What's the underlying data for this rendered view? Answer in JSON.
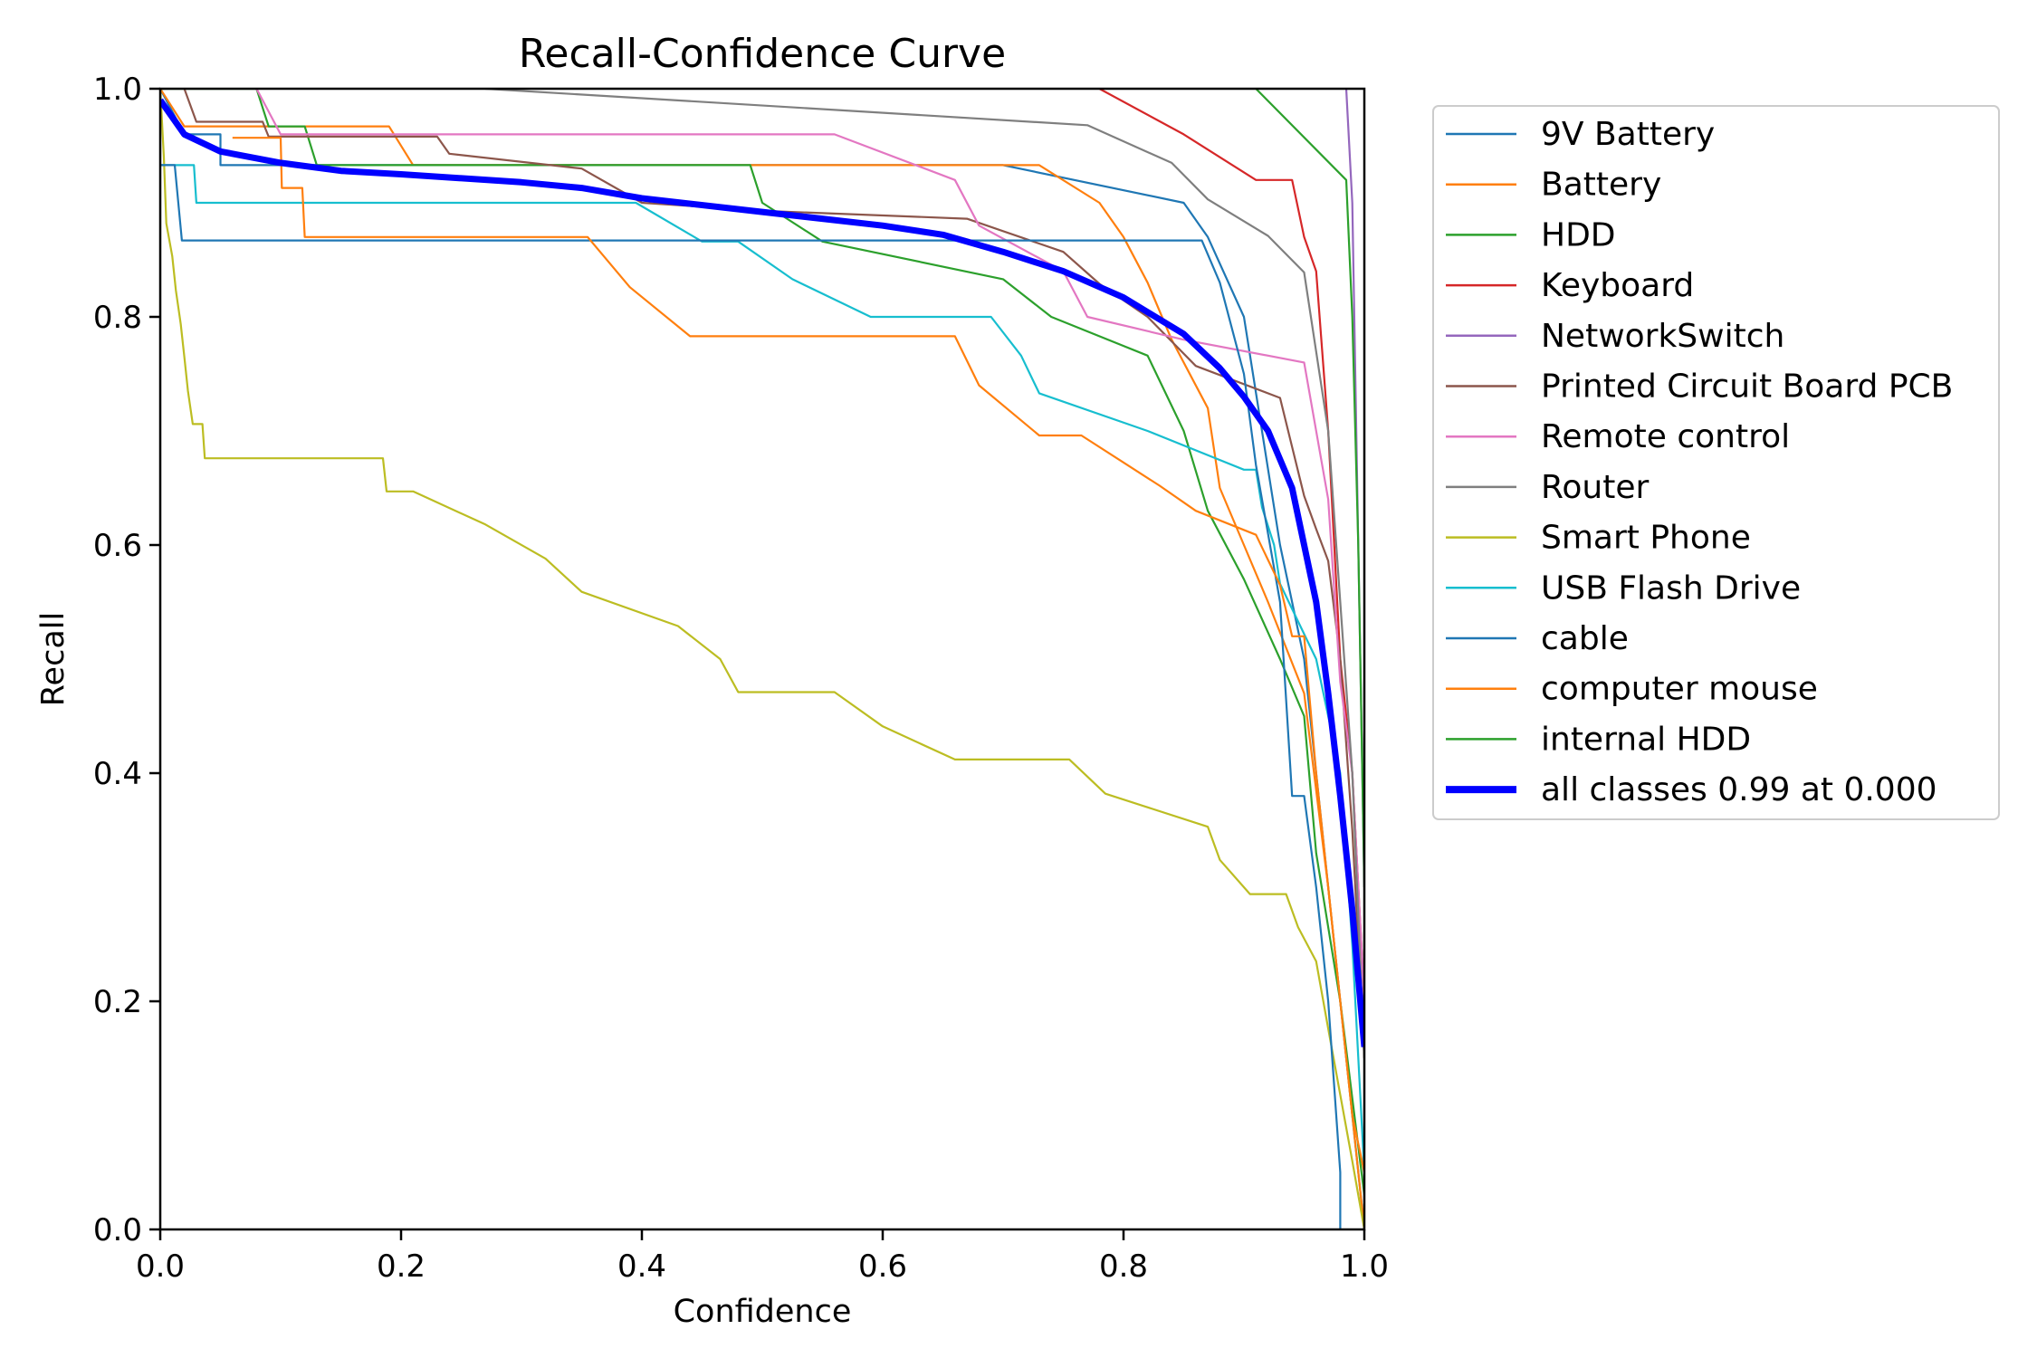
{
  "chart_data": {
    "type": "line",
    "title": "Recall-Confidence Curve",
    "xlabel": "Confidence",
    "ylabel": "Recall",
    "xlim": [
      0,
      1
    ],
    "ylim": [
      0,
      1
    ],
    "xticks": [
      "0.0",
      "0.2",
      "0.4",
      "0.6",
      "0.8",
      "1.0"
    ],
    "yticks": [
      "0.0",
      "0.2",
      "0.4",
      "0.6",
      "0.8",
      "1.0"
    ],
    "grid": false,
    "legend_position": "outside-right",
    "series": [
      {
        "name": "9V Battery",
        "color": "#1f77b4",
        "width": 1,
        "points": [
          [
            0,
            1.0
          ],
          [
            0.02,
            0.96
          ],
          [
            0.05,
            0.96
          ],
          [
            0.05,
            0.933
          ],
          [
            0.7,
            0.933
          ],
          [
            0.85,
            0.9
          ],
          [
            0.87,
            0.87
          ],
          [
            0.9,
            0.8
          ],
          [
            0.93,
            0.6
          ],
          [
            0.95,
            0.5
          ],
          [
            0.97,
            0.3
          ],
          [
            0.99,
            0.1
          ],
          [
            1.0,
            0.0
          ]
        ]
      },
      {
        "name": "Battery",
        "color": "#ff7f0e",
        "width": 1,
        "points": [
          [
            0,
            1.0
          ],
          [
            0.02,
            0.967
          ],
          [
            0.19,
            0.967
          ],
          [
            0.21,
            0.933
          ],
          [
            0.73,
            0.933
          ],
          [
            0.78,
            0.9
          ],
          [
            0.8,
            0.87
          ],
          [
            0.82,
            0.83
          ],
          [
            0.84,
            0.78
          ],
          [
            0.87,
            0.72
          ],
          [
            0.88,
            0.65
          ],
          [
            0.9,
            0.6
          ],
          [
            0.92,
            0.55
          ],
          [
            0.95,
            0.47
          ],
          [
            0.97,
            0.3
          ],
          [
            0.99,
            0.1
          ],
          [
            1.0,
            0.0
          ]
        ]
      },
      {
        "name": "HDD",
        "color": "#2ca02c",
        "width": 1,
        "points": [
          [
            0,
            1.0
          ],
          [
            0.08,
            1.0
          ],
          [
            0.09,
            0.967
          ],
          [
            0.12,
            0.967
          ],
          [
            0.13,
            0.933
          ],
          [
            0.49,
            0.933
          ],
          [
            0.5,
            0.9
          ],
          [
            0.55,
            0.866
          ],
          [
            0.7,
            0.833
          ],
          [
            0.74,
            0.8
          ],
          [
            0.82,
            0.766
          ],
          [
            0.85,
            0.7
          ],
          [
            0.87,
            0.63
          ],
          [
            0.9,
            0.57
          ],
          [
            0.93,
            0.5
          ],
          [
            0.95,
            0.45
          ],
          [
            0.96,
            0.33
          ],
          [
            0.98,
            0.2
          ],
          [
            1.0,
            0.03
          ]
        ]
      },
      {
        "name": "Keyboard",
        "color": "#d62728",
        "width": 1,
        "points": [
          [
            0.78,
            1.0
          ],
          [
            0.85,
            0.96
          ],
          [
            0.91,
            0.92
          ],
          [
            0.94,
            0.92
          ],
          [
            0.95,
            0.87
          ],
          [
            0.96,
            0.84
          ],
          [
            0.97,
            0.7
          ],
          [
            0.98,
            0.5
          ],
          [
            0.99,
            0.4
          ],
          [
            1.0,
            0.2
          ]
        ]
      },
      {
        "name": "NetworkSwitch",
        "color": "#9467bd",
        "width": 1,
        "points": [
          [
            0.985,
            1.0
          ],
          [
            0.99,
            0.9
          ],
          [
            0.995,
            0.6
          ],
          [
            1.0,
            0.3
          ]
        ]
      },
      {
        "name": "Printed Circuit Board PCB",
        "color": "#8c564b",
        "width": 1,
        "points": [
          [
            0.02,
            1.0
          ],
          [
            0.03,
            0.971
          ],
          [
            0.085,
            0.971
          ],
          [
            0.09,
            0.958
          ],
          [
            0.23,
            0.958
          ],
          [
            0.24,
            0.943
          ],
          [
            0.35,
            0.93
          ],
          [
            0.4,
            0.9
          ],
          [
            0.5,
            0.893
          ],
          [
            0.67,
            0.886
          ],
          [
            0.75,
            0.857
          ],
          [
            0.78,
            0.829
          ],
          [
            0.82,
            0.8
          ],
          [
            0.86,
            0.757
          ],
          [
            0.93,
            0.729
          ],
          [
            0.94,
            0.686
          ],
          [
            0.95,
            0.643
          ],
          [
            0.96,
            0.614
          ],
          [
            0.97,
            0.586
          ],
          [
            0.98,
            0.5
          ],
          [
            0.99,
            0.35
          ],
          [
            1.0,
            0.15
          ]
        ]
      },
      {
        "name": "Remote control",
        "color": "#e377c2",
        "width": 1,
        "points": [
          [
            0.08,
            1.0
          ],
          [
            0.1,
            0.96
          ],
          [
            0.56,
            0.96
          ],
          [
            0.66,
            0.92
          ],
          [
            0.68,
            0.88
          ],
          [
            0.75,
            0.84
          ],
          [
            0.77,
            0.8
          ],
          [
            0.85,
            0.78
          ],
          [
            0.95,
            0.76
          ],
          [
            0.97,
            0.64
          ],
          [
            0.98,
            0.48
          ],
          [
            0.99,
            0.4
          ],
          [
            1.0,
            0.2
          ]
        ]
      },
      {
        "name": "Router",
        "color": "#7f7f7f",
        "width": 1,
        "points": [
          [
            0.27,
            1.0
          ],
          [
            0.77,
            0.968
          ],
          [
            0.84,
            0.935
          ],
          [
            0.87,
            0.903
          ],
          [
            0.92,
            0.871
          ],
          [
            0.95,
            0.839
          ],
          [
            0.97,
            0.7
          ],
          [
            0.98,
            0.55
          ],
          [
            0.99,
            0.4
          ],
          [
            1.0,
            0.15
          ]
        ]
      },
      {
        "name": "Smart Phone",
        "color": "#bcbd22",
        "width": 1,
        "points": [
          [
            0,
            1.0
          ],
          [
            0.003,
            0.94
          ],
          [
            0.005,
            0.882
          ],
          [
            0.01,
            0.853
          ],
          [
            0.013,
            0.823
          ],
          [
            0.017,
            0.794
          ],
          [
            0.02,
            0.765
          ],
          [
            0.023,
            0.735
          ],
          [
            0.027,
            0.706
          ],
          [
            0.035,
            0.706
          ],
          [
            0.037,
            0.676
          ],
          [
            0.185,
            0.676
          ],
          [
            0.188,
            0.647
          ],
          [
            0.21,
            0.647
          ],
          [
            0.27,
            0.618
          ],
          [
            0.32,
            0.588
          ],
          [
            0.35,
            0.559
          ],
          [
            0.43,
            0.529
          ],
          [
            0.465,
            0.5
          ],
          [
            0.48,
            0.471
          ],
          [
            0.56,
            0.471
          ],
          [
            0.6,
            0.441
          ],
          [
            0.66,
            0.412
          ],
          [
            0.755,
            0.412
          ],
          [
            0.785,
            0.382
          ],
          [
            0.87,
            0.353
          ],
          [
            0.88,
            0.324
          ],
          [
            0.905,
            0.294
          ],
          [
            0.935,
            0.294
          ],
          [
            0.945,
            0.265
          ],
          [
            0.96,
            0.235
          ],
          [
            0.97,
            0.176
          ],
          [
            0.98,
            0.118
          ],
          [
            0.99,
            0.06
          ],
          [
            1.0,
            0.0
          ]
        ]
      },
      {
        "name": "USB Flash Drive",
        "color": "#17becf",
        "width": 1,
        "points": [
          [
            0,
            0.933
          ],
          [
            0.028,
            0.933
          ],
          [
            0.03,
            0.9
          ],
          [
            0.395,
            0.9
          ],
          [
            0.45,
            0.866
          ],
          [
            0.48,
            0.866
          ],
          [
            0.525,
            0.833
          ],
          [
            0.59,
            0.8
          ],
          [
            0.69,
            0.8
          ],
          [
            0.715,
            0.766
          ],
          [
            0.73,
            0.733
          ],
          [
            0.82,
            0.7
          ],
          [
            0.9,
            0.666
          ],
          [
            0.91,
            0.666
          ],
          [
            0.915,
            0.633
          ],
          [
            0.925,
            0.6
          ],
          [
            0.93,
            0.566
          ],
          [
            0.945,
            0.533
          ],
          [
            0.96,
            0.5
          ],
          [
            0.97,
            0.45
          ],
          [
            0.98,
            0.4
          ],
          [
            0.99,
            0.25
          ],
          [
            1.0,
            0.05
          ]
        ]
      },
      {
        "name": "cable",
        "color": "#1f77b4",
        "width": 1,
        "points": [
          [
            0,
            0.933
          ],
          [
            0.012,
            0.933
          ],
          [
            0.018,
            0.867
          ],
          [
            0.865,
            0.867
          ],
          [
            0.88,
            0.83
          ],
          [
            0.9,
            0.75
          ],
          [
            0.91,
            0.67
          ],
          [
            0.93,
            0.55
          ],
          [
            0.94,
            0.38
          ],
          [
            0.95,
            0.38
          ],
          [
            0.96,
            0.3
          ],
          [
            0.97,
            0.2
          ],
          [
            0.98,
            0.05
          ],
          [
            0.98,
            0.0
          ]
        ]
      },
      {
        "name": "computer mouse",
        "color": "#ff7f0e",
        "width": 1,
        "points": [
          [
            0.06,
            0.957
          ],
          [
            0.1,
            0.957
          ],
          [
            0.101,
            0.913
          ],
          [
            0.118,
            0.913
          ],
          [
            0.12,
            0.87
          ],
          [
            0.355,
            0.87
          ],
          [
            0.39,
            0.826
          ],
          [
            0.44,
            0.783
          ],
          [
            0.66,
            0.783
          ],
          [
            0.68,
            0.74
          ],
          [
            0.73,
            0.696
          ],
          [
            0.765,
            0.696
          ],
          [
            0.83,
            0.652
          ],
          [
            0.86,
            0.63
          ],
          [
            0.91,
            0.609
          ],
          [
            0.93,
            0.565
          ],
          [
            0.94,
            0.52
          ],
          [
            0.95,
            0.52
          ],
          [
            0.96,
            0.4
          ],
          [
            0.97,
            0.3
          ],
          [
            0.98,
            0.2
          ],
          [
            0.99,
            0.1
          ],
          [
            1.0,
            0.05
          ]
        ]
      },
      {
        "name": "internal HDD",
        "color": "#2ca02c",
        "width": 1,
        "points": [
          [
            0.91,
            1.0
          ],
          [
            0.985,
            0.92
          ],
          [
            0.99,
            0.8
          ],
          [
            0.995,
            0.6
          ],
          [
            1.0,
            0.3
          ]
        ]
      },
      {
        "name": "all classes 0.99 at 0.000",
        "color": "#0000ff",
        "width": 7,
        "points": [
          [
            0,
            0.99
          ],
          [
            0.02,
            0.96
          ],
          [
            0.05,
            0.945
          ],
          [
            0.1,
            0.935
          ],
          [
            0.15,
            0.928
          ],
          [
            0.2,
            0.925
          ],
          [
            0.3,
            0.918
          ],
          [
            0.35,
            0.913
          ],
          [
            0.4,
            0.904
          ],
          [
            0.5,
            0.892
          ],
          [
            0.6,
            0.88
          ],
          [
            0.65,
            0.872
          ],
          [
            0.7,
            0.857
          ],
          [
            0.75,
            0.84
          ],
          [
            0.8,
            0.817
          ],
          [
            0.85,
            0.785
          ],
          [
            0.88,
            0.755
          ],
          [
            0.9,
            0.73
          ],
          [
            0.92,
            0.7
          ],
          [
            0.94,
            0.65
          ],
          [
            0.96,
            0.55
          ],
          [
            0.97,
            0.47
          ],
          [
            0.98,
            0.38
          ],
          [
            0.99,
            0.28
          ],
          [
            1.0,
            0.16
          ]
        ]
      }
    ]
  }
}
